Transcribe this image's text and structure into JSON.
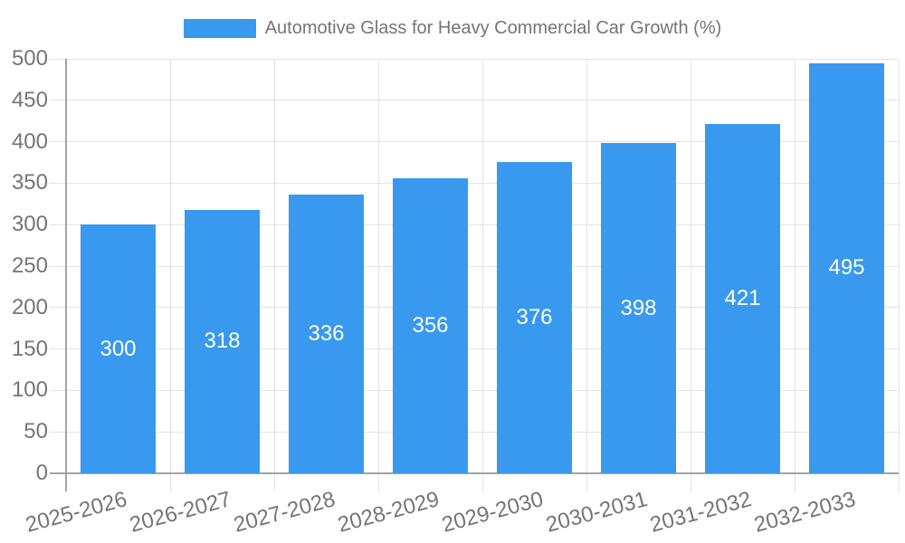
{
  "chart_data": {
    "type": "bar",
    "title": "Automotive Glass for Heavy Commercial Car Growth (%)",
    "categories": [
      "2025-2026",
      "2026-2027",
      "2027-2028",
      "2028-2029",
      "2029-2030",
      "2030-2031",
      "2031-2032",
      "2032-2033"
    ],
    "values": [
      300,
      318,
      336,
      356,
      376,
      398,
      421,
      495
    ],
    "series": [
      {
        "name": "Automotive Glass for Heavy Commercial Car Growth (%)",
        "values": [
          300,
          318,
          336,
          356,
          376,
          398,
          421,
          495
        ]
      }
    ],
    "xlabel": "",
    "ylabel": "",
    "ylim": [
      0,
      500
    ],
    "ytick_step": 50,
    "ytick_labels": [
      "0",
      "50",
      "100",
      "150",
      "200",
      "250",
      "300",
      "350",
      "400",
      "450",
      "500"
    ],
    "grid": true,
    "legend_position": "top-center",
    "x_tick_rotation_deg": -15,
    "value_labels": "inside-center",
    "colors": {
      "bar": "#3999EF",
      "tick_text": "#757575",
      "legend_text": "#757575",
      "value_text": "#ffffff",
      "grid": "#e3e3e3",
      "axis": "#a3a3a3"
    }
  }
}
